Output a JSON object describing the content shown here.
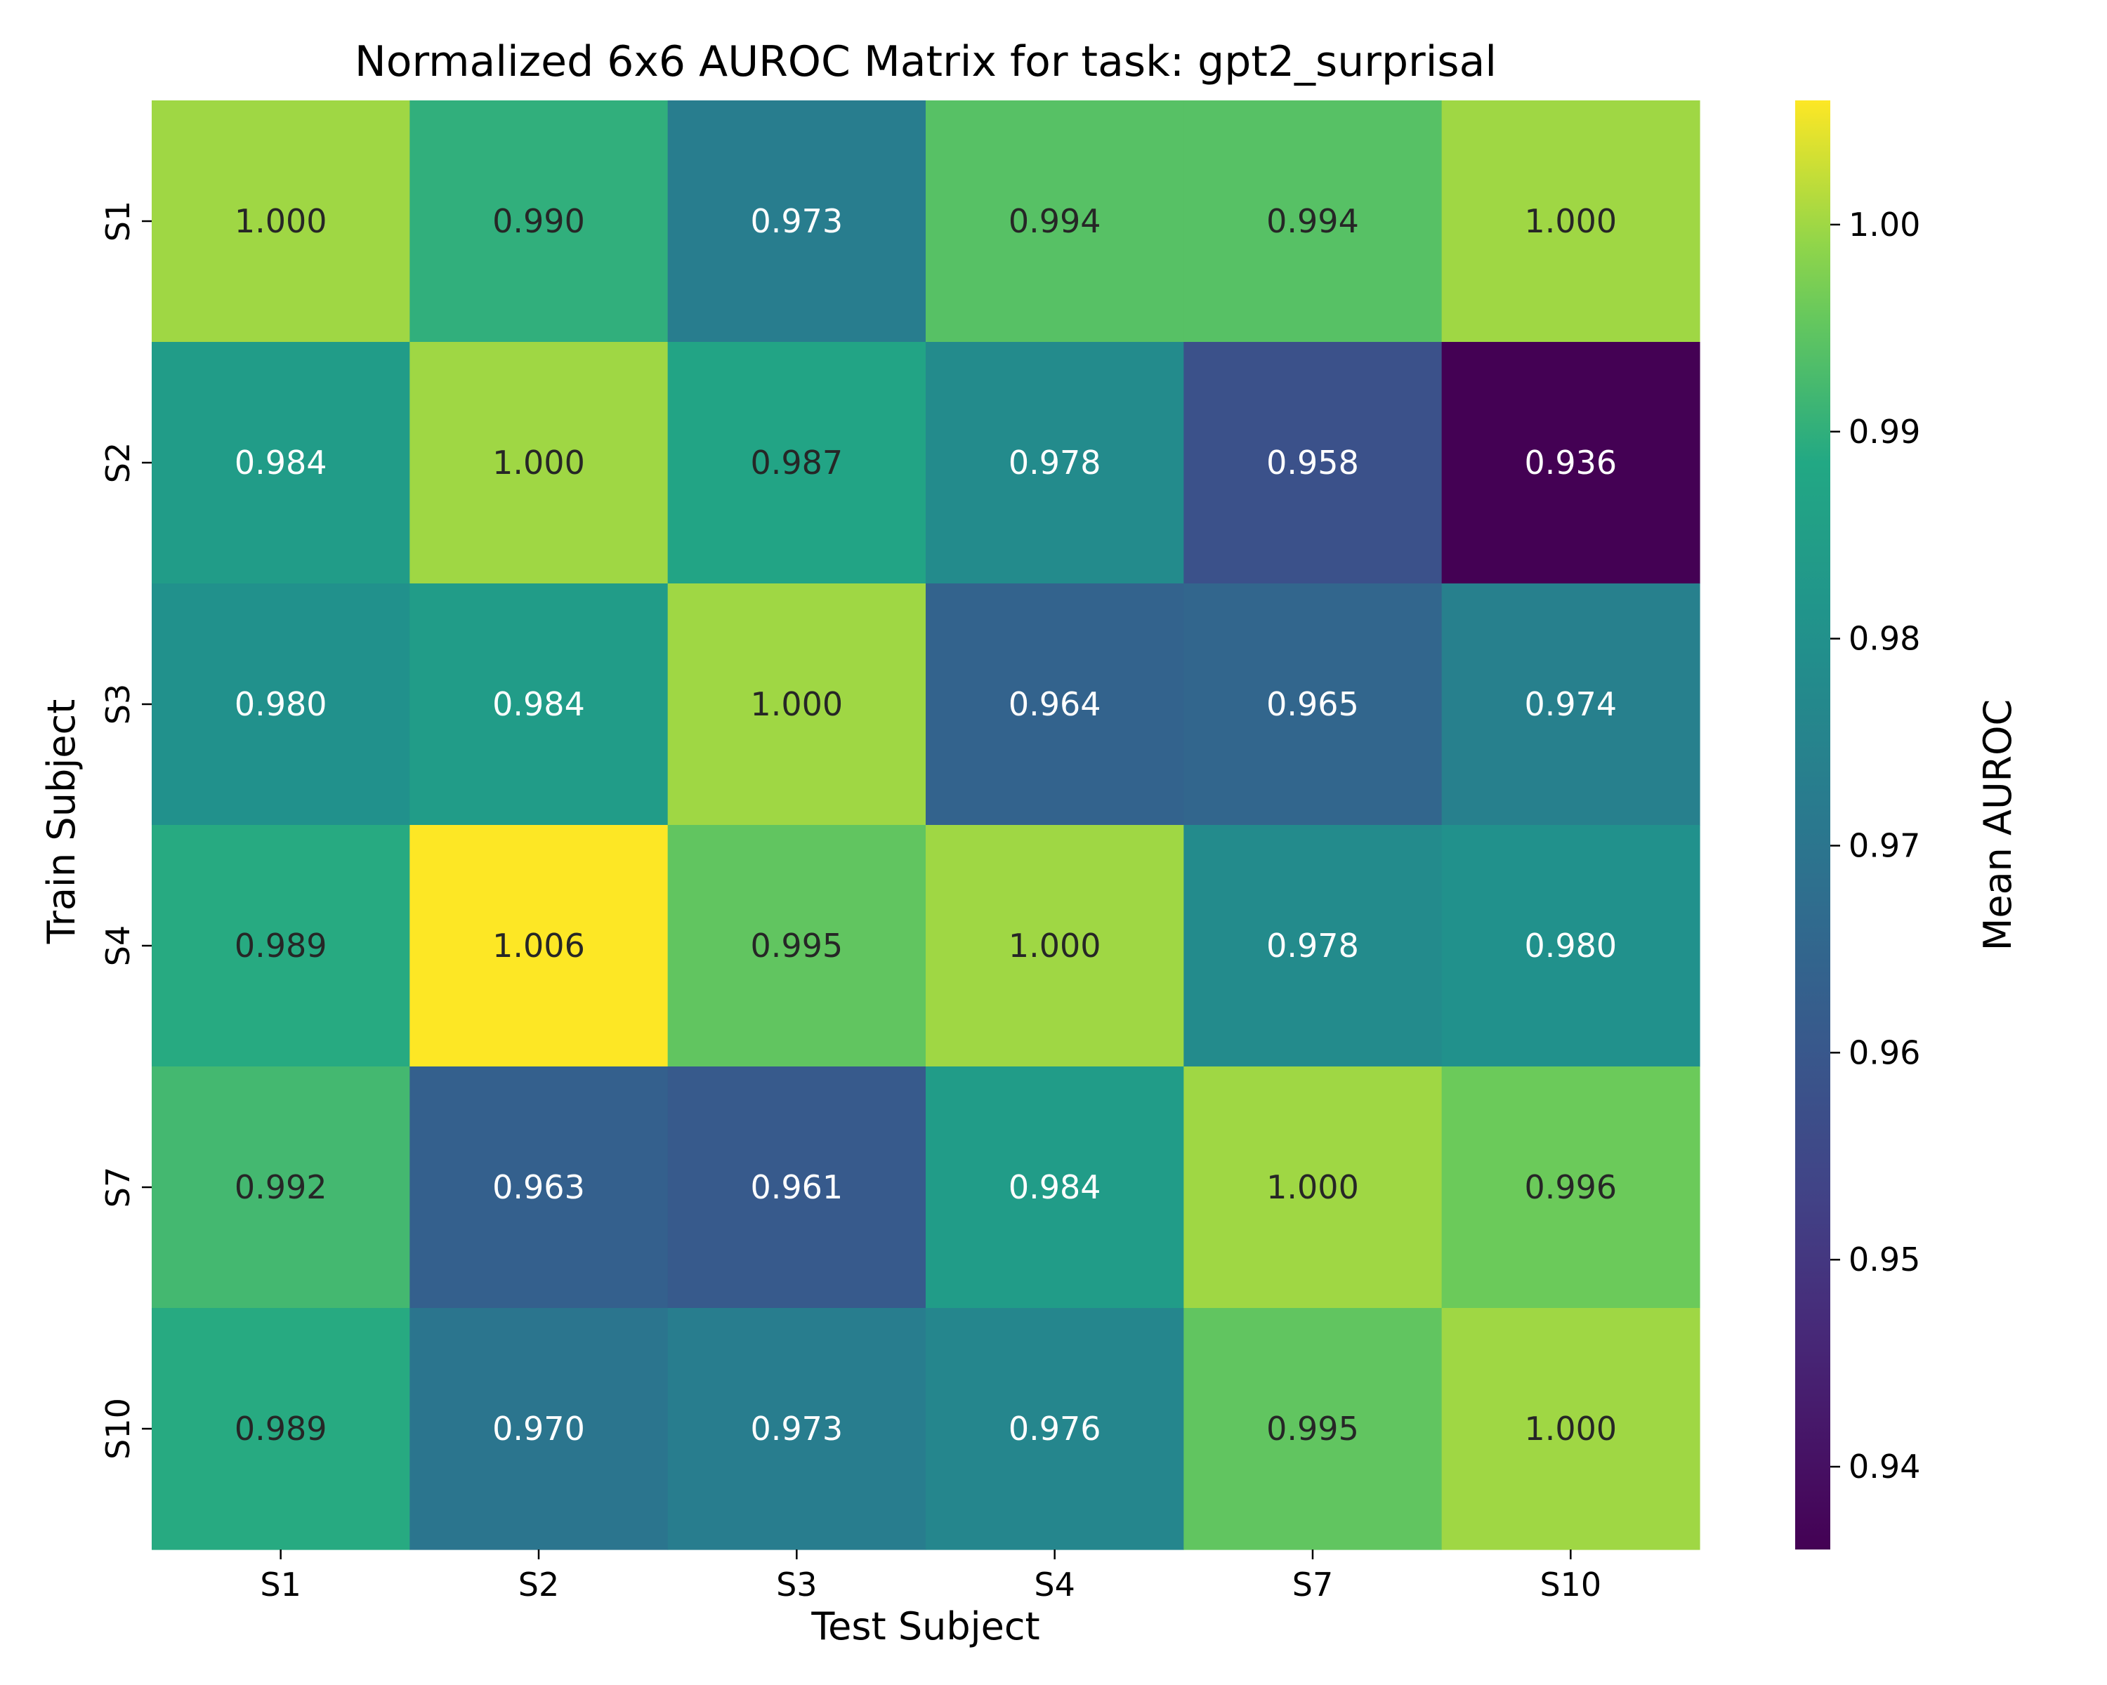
{
  "chart_data": {
    "type": "heatmap",
    "title": "Normalized 6x6 AUROC Matrix for task: gpt2_surprisal",
    "xlabel": "Test Subject",
    "ylabel": "Train Subject",
    "x_categories": [
      "S1",
      "S2",
      "S3",
      "S4",
      "S7",
      "S10"
    ],
    "y_categories": [
      "S1",
      "S2",
      "S3",
      "S4",
      "S7",
      "S10"
    ],
    "values": [
      [
        1.0,
        0.99,
        0.973,
        0.994,
        0.994,
        1.0
      ],
      [
        0.984,
        1.0,
        0.987,
        0.978,
        0.958,
        0.936
      ],
      [
        0.98,
        0.984,
        1.0,
        0.964,
        0.965,
        0.974
      ],
      [
        0.989,
        1.006,
        0.995,
        1.0,
        0.978,
        0.98
      ],
      [
        0.992,
        0.963,
        0.961,
        0.984,
        1.0,
        0.996
      ],
      [
        0.989,
        0.97,
        0.973,
        0.976,
        0.995,
        1.0
      ]
    ],
    "value_format": "3 decimals",
    "colormap": "viridis",
    "colorbar": {
      "label": "Mean AUROC",
      "range": [
        0.936,
        1.006
      ],
      "ticks": [
        0.94,
        0.95,
        0.96,
        0.97,
        0.98,
        0.99,
        1.0
      ],
      "tick_labels": [
        "0.94",
        "0.95",
        "0.96",
        "0.97",
        "0.98",
        "0.99",
        "1.00"
      ]
    }
  }
}
